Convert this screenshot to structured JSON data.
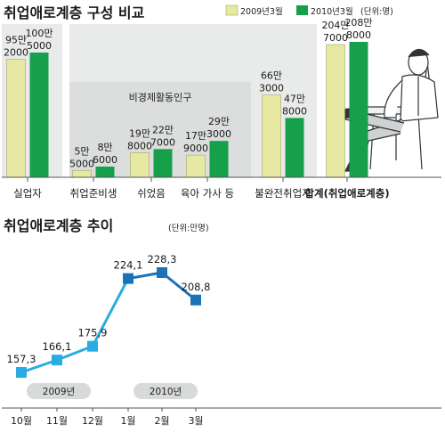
{
  "chart_data": [
    {
      "type": "bar",
      "title": "취업애로계층 구성 비교",
      "unit_note": "(단위:명)",
      "legend": [
        "2009년3월",
        "2010년3월"
      ],
      "group_label": "비경제활동인구",
      "categories": [
        "실업자",
        "취업준비생",
        "쉬었음",
        "육아 가사 등",
        "불완전취업자",
        "합계(취업애로계층)"
      ],
      "series": [
        {
          "name": "2009년3월",
          "values": [
            952000,
            55000,
            198000,
            179000,
            663000,
            2047000
          ],
          "labels": [
            [
              "95만",
              "2000"
            ],
            [
              "5만",
              "5000"
            ],
            [
              "19만",
              "8000"
            ],
            [
              "17만",
              "9000"
            ],
            [
              "66만",
              "3000"
            ],
            [
              "204만",
              "7000"
            ]
          ]
        },
        {
          "name": "2010년3월",
          "values": [
            1005000,
            86000,
            227000,
            293000,
            478000,
            2088000
          ],
          "labels": [
            [
              "100만",
              "5000"
            ],
            [
              "8만",
              "6000"
            ],
            [
              "22만",
              "7000"
            ],
            [
              "29만",
              "3000"
            ],
            [
              "47만",
              "8000"
            ],
            [
              "208만",
              "8000"
            ]
          ]
        }
      ],
      "colors": {
        "2009년3월": "#e6e8a3",
        "2010년3월": "#16a04c"
      }
    },
    {
      "type": "line",
      "title": "취업애로계층 추이",
      "unit_note": "(단위:만명)",
      "x": [
        "10월",
        "11월",
        "12월",
        "1월",
        "2월",
        "3월"
      ],
      "year_labels": [
        "2009년",
        "2010년"
      ],
      "series": [
        {
          "values": [
            157.3,
            166.1,
            175.9,
            224.1,
            228.3,
            208.8
          ],
          "labels": [
            "157,3",
            "166,1",
            "175,9",
            "224,1",
            "228,3",
            "208,8"
          ]
        }
      ],
      "colors": {
        "2009": "#2aabe2",
        "2010": "#1a72b8"
      }
    }
  ]
}
